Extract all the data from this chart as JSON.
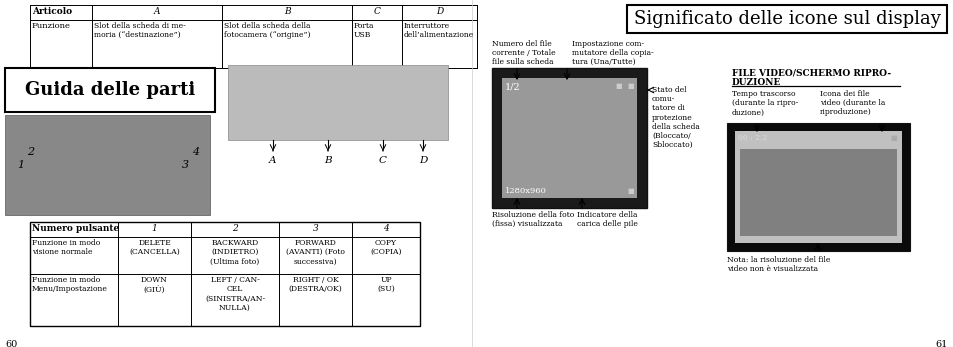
{
  "bg_color": "#ffffff",
  "left_page": {
    "page_num": "60",
    "top_table": {
      "headers": [
        "Articolo",
        "A",
        "B",
        "C",
        "D"
      ],
      "row": [
        "Funzione",
        "Slot della scheda di me-\nmoria (“destinazione”)",
        "Slot della scheda della\nfotocamera (“origine”)",
        "Porta\nUSB",
        "Interruttore\ndell’alimentazione"
      ]
    },
    "title_box": "Guida delle parti",
    "bottom_table": {
      "headers": [
        "Numero pulsante",
        "1",
        "2",
        "3",
        "4"
      ],
      "rows": [
        [
          "Funzione in modo\nvisione normale",
          "DELETE\n(CANCELLA)",
          "BACKWARD\n(INDIETRO)\n(Ultima foto)",
          "FORWARD\n(AVANTI) (Foto\nsuccessiva)",
          "COPY\n(COPIA)"
        ],
        [
          "Funzione in modo\nMenu/Impostazione",
          "DOWN\n(GIÙ)",
          "LEFT / CAN-\nCEL\n(SINISTRA/AN-\nNULLA)",
          "RIGHT / OK\n(DESTRA/OK)",
          "UP\n(SU)"
        ]
      ]
    }
  },
  "right_page": {
    "page_num": "61",
    "title": "Significato delle icone sul display",
    "labels_display": {
      "top_left": "Numero del file\ncorrente / Totale\nfile sulla scheda",
      "top_center": "Impostazione com-\nmutatore della copia-\ntura (Una/Tutte)",
      "right": "Stato del\ncomu-\ntatore di\nprotezione\ndella scheda\n(Bloccato/\nSbloccato)",
      "bottom_left": "Risoluzione della foto\n(fissa) visualizzata",
      "bottom_center": "Indicatore della\ncarica delle pile"
    },
    "video_section": {
      "title_bold_line1": "FILE VIDEO/SCHERMO RIPRO-",
      "title_bold_line2": "DUZIONE",
      "label_left": "Tempo trascorso\n(durante la ripro-\nduzione)",
      "label_right": "Icona dei file\nvideo (durante la\nriproduzione)",
      "note": "Nota: la risoluzione del file\nvideo non è visualizzata",
      "video_text": "00 : 2.2"
    }
  }
}
